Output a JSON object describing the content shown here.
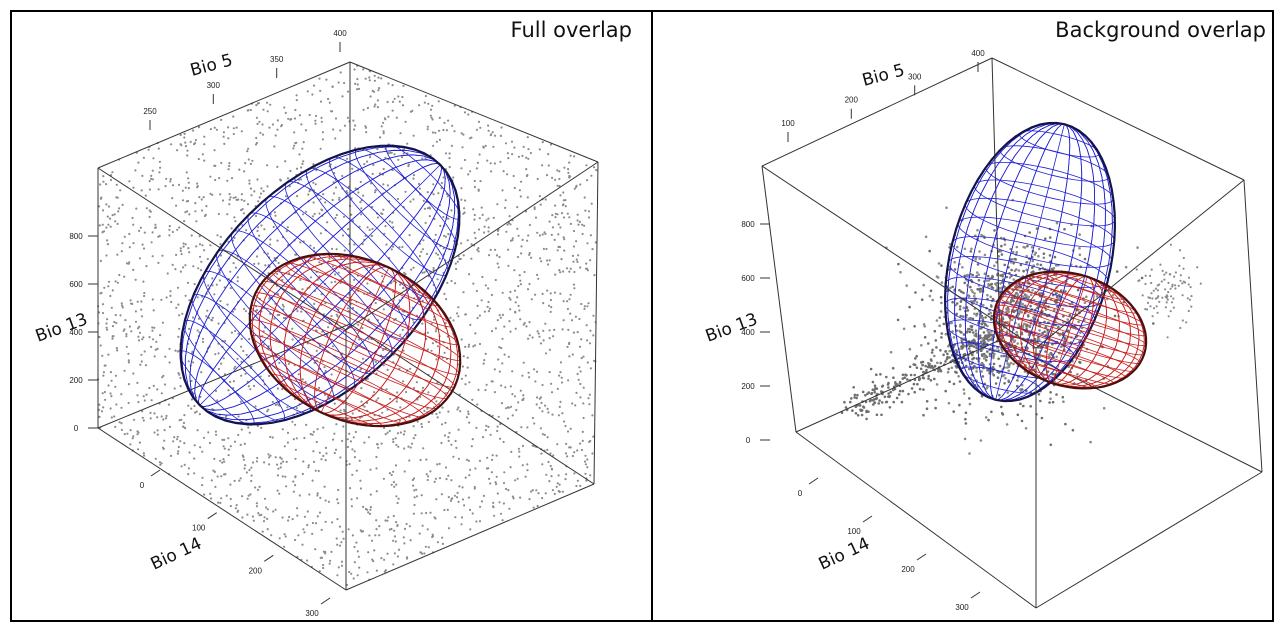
{
  "figure": {
    "colors": {
      "frame": "#000000",
      "box": "#333333",
      "points": "#8c8c8c",
      "points_dense": "#6e6e6e",
      "ellipsoid_blue": "#1f1fd6",
      "ellipsoid_blue_dark": "#14144a",
      "ellipsoid_red": "#c81e1e",
      "ellipsoid_red_dark": "#4a0f0f"
    }
  },
  "chart_data": [
    {
      "type": "scatter",
      "title": "Full overlap",
      "axes": {
        "x": {
          "label": "Bio 14",
          "ticks": [
            "0",
            "100",
            "200",
            "300"
          ]
        },
        "y": {
          "label": "Bio 5",
          "ticks": [
            "250",
            "300",
            "350",
            "400"
          ]
        },
        "z": {
          "label": "Bio 13",
          "ticks": [
            "0",
            "200",
            "400",
            "600",
            "800"
          ]
        }
      },
      "xlim": [
        0,
        300
      ],
      "ylim": [
        230,
        400
      ],
      "zlim": [
        0,
        900
      ],
      "background_points": "uniform scatter filling the whole Bio14 × Bio5 × Bio13 box",
      "ellipsoids": [
        {
          "color": "blue",
          "style": "wireframe",
          "description": "large ellipsoid tilted along the diagonal"
        },
        {
          "color": "red",
          "style": "wireframe",
          "description": "smaller ellipsoid overlapping the blue one"
        }
      ]
    },
    {
      "type": "scatter",
      "title": "Background overlap",
      "axes": {
        "x": {
          "label": "Bio 14",
          "ticks": [
            "0",
            "100",
            "200",
            "300"
          ]
        },
        "y": {
          "label": "Bio 5",
          "ticks": [
            "100",
            "200",
            "300",
            "400"
          ]
        },
        "z": {
          "label": "Bio 13",
          "ticks": [
            "0",
            "200",
            "400",
            "600",
            "800"
          ]
        }
      },
      "xlim": [
        0,
        340
      ],
      "ylim": [
        50,
        420
      ],
      "zlim": [
        0,
        900
      ],
      "background_points": "dense cluster in the ellipsoid overlap plus a low diagonal tail and a small cluster to the right",
      "ellipsoids": [
        {
          "color": "blue",
          "style": "wireframe",
          "description": "tall upright ellipsoid"
        },
        {
          "color": "red",
          "style": "wireframe",
          "description": "flatter ellipsoid extending right"
        }
      ]
    }
  ]
}
